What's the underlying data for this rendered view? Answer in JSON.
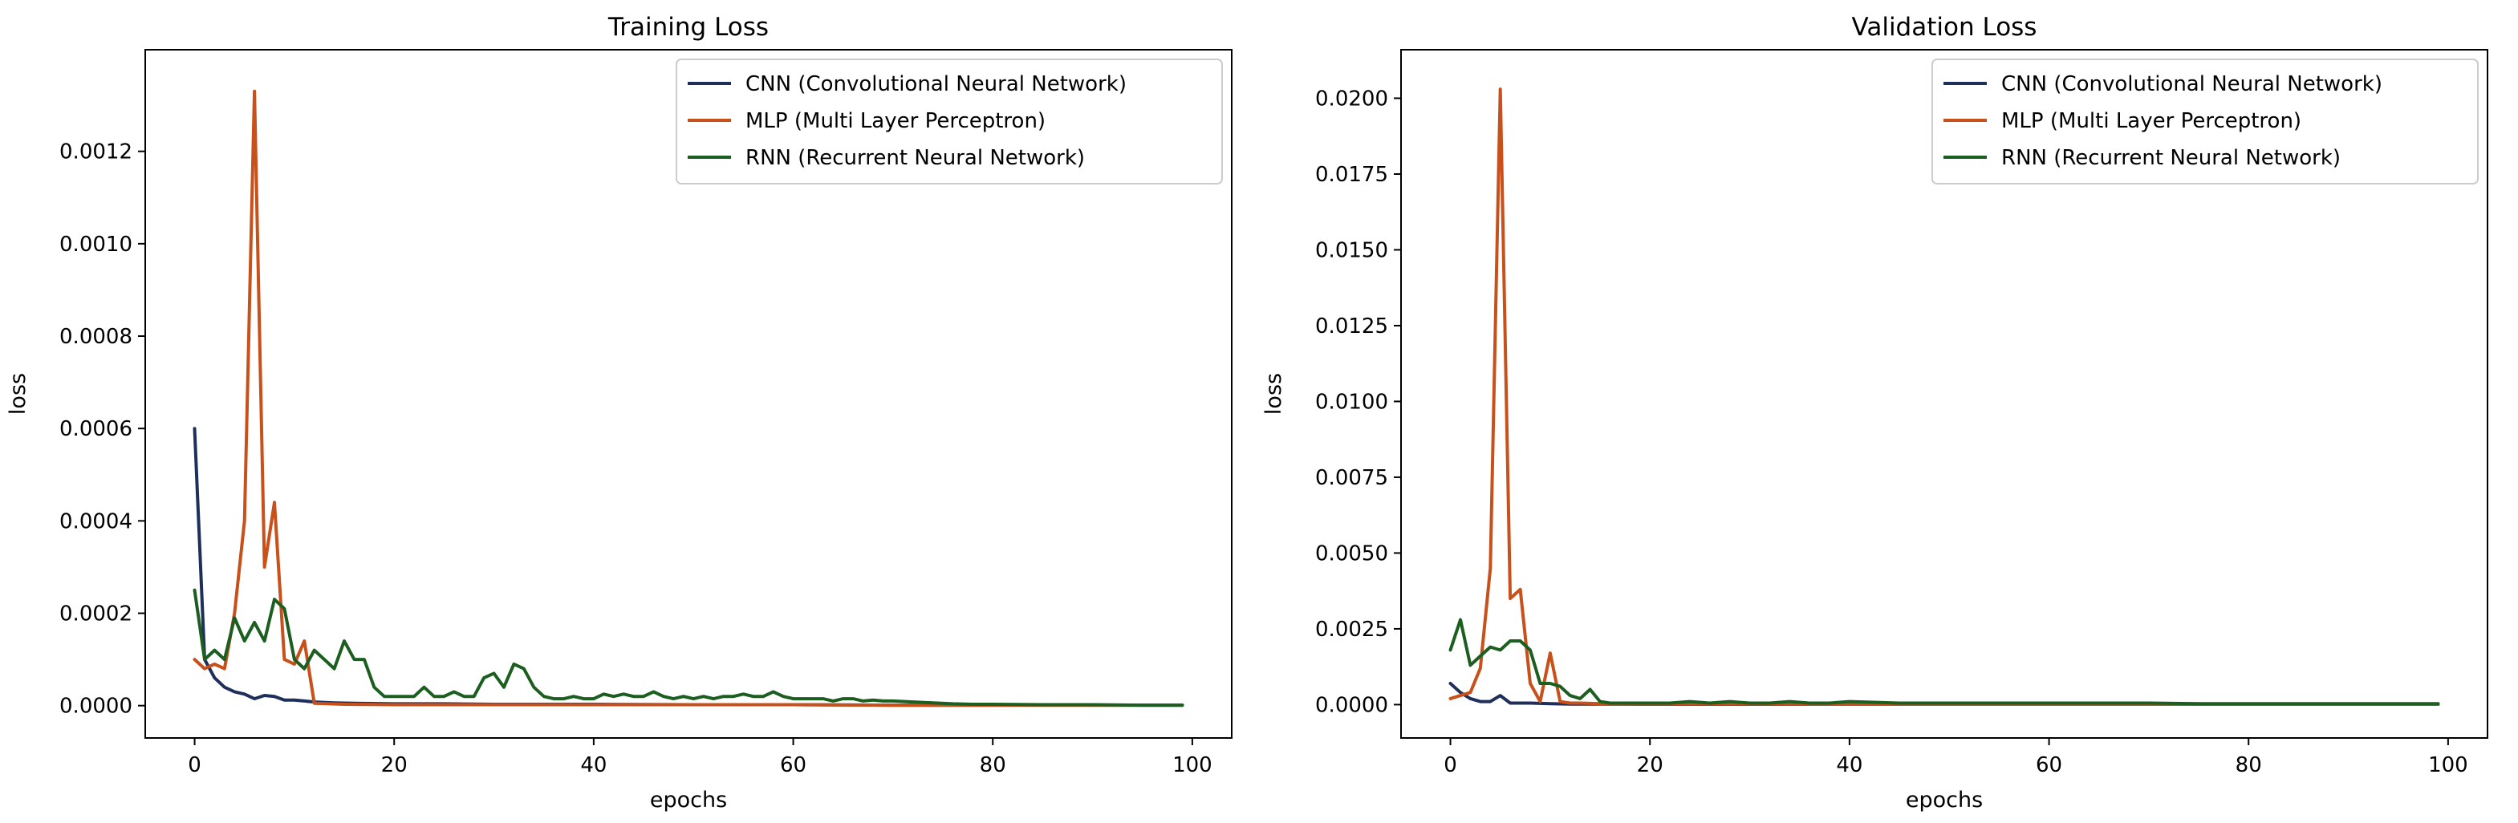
{
  "chart_data": [
    {
      "type": "line",
      "title": "Training Loss",
      "xlabel": "epochs",
      "ylabel": "loss",
      "xlim": [
        -4.95,
        103.95
      ],
      "ylim": [
        -7e-05,
        0.00142
      ],
      "xticks": [
        0,
        20,
        40,
        60,
        80,
        100
      ],
      "xtick_labels": [
        "0",
        "20",
        "40",
        "60",
        "80",
        "100"
      ],
      "yticks": [
        0,
        0.0002,
        0.0004,
        0.0006,
        0.0008,
        0.001,
        0.0012
      ],
      "ytick_labels": [
        "0.0000",
        "0.0002",
        "0.0004",
        "0.0006",
        "0.0008",
        "0.0010",
        "0.0012"
      ],
      "grid": false,
      "legend_position": "top-right",
      "series": [
        {
          "name": "CNN (Convolutional Neural Network)",
          "color": "#1f2f5c",
          "x": [
            0,
            1,
            2,
            3,
            4,
            5,
            6,
            7,
            8,
            9,
            10,
            11,
            12,
            14,
            16,
            20,
            25,
            30,
            40,
            50,
            60,
            70,
            80,
            90,
            99
          ],
          "y": [
            0.0006,
            0.0001,
            6e-05,
            4e-05,
            3e-05,
            2.5e-05,
            1.5e-05,
            2.2e-05,
            2e-05,
            1.2e-05,
            1.2e-05,
            1e-05,
            8e-06,
            6e-06,
            5e-06,
            4e-06,
            4e-06,
            3e-06,
            3e-06,
            2e-06,
            2e-06,
            1e-06,
            1e-06,
            1e-06,
            1e-06
          ]
        },
        {
          "name": "MLP (Multi Layer Perceptron)",
          "color": "#c8501a",
          "x": [
            0,
            1,
            2,
            3,
            4,
            5,
            6,
            7,
            8,
            9,
            10,
            11,
            12,
            15,
            20,
            30,
            40,
            50,
            60,
            70,
            80,
            90,
            99
          ],
          "y": [
            0.0001,
            8e-05,
            9e-05,
            8e-05,
            0.0002,
            0.0004,
            0.00133,
            0.0003,
            0.00044,
            0.0001,
            9e-05,
            0.00014,
            5e-06,
            3e-06,
            2e-06,
            2e-06,
            2e-06,
            2e-06,
            2e-06,
            1e-06,
            1e-06,
            1e-06,
            1e-06
          ]
        },
        {
          "name": "RNN (Recurrent Neural Network)",
          "color": "#1b5e20",
          "x": [
            0,
            1,
            2,
            3,
            4,
            5,
            6,
            7,
            8,
            9,
            10,
            11,
            12,
            13,
            14,
            15,
            16,
            17,
            18,
            19,
            20,
            21,
            22,
            23,
            24,
            25,
            26,
            27,
            28,
            29,
            30,
            31,
            32,
            33,
            34,
            35,
            36,
            37,
            38,
            39,
            40,
            41,
            42,
            43,
            44,
            45,
            46,
            47,
            48,
            49,
            50,
            51,
            52,
            53,
            54,
            55,
            56,
            57,
            58,
            59,
            60,
            61,
            62,
            63,
            64,
            65,
            66,
            67,
            68,
            69,
            70,
            72,
            74,
            76,
            78,
            80,
            85,
            90,
            95,
            99
          ],
          "y": [
            0.00025,
            0.0001,
            0.00012,
            0.0001,
            0.00019,
            0.00014,
            0.00018,
            0.00014,
            0.00023,
            0.00021,
            0.0001,
            8e-05,
            0.00012,
            0.0001,
            8e-05,
            0.00014,
            0.0001,
            0.0001,
            4e-05,
            2e-05,
            2e-05,
            2e-05,
            2e-05,
            4e-05,
            2e-05,
            2e-05,
            3e-05,
            2e-05,
            2e-05,
            6e-05,
            7e-05,
            4e-05,
            9e-05,
            8e-05,
            4e-05,
            2e-05,
            1.5e-05,
            1.5e-05,
            2e-05,
            1.5e-05,
            1.5e-05,
            2.5e-05,
            2e-05,
            2.5e-05,
            2e-05,
            2e-05,
            3e-05,
            2e-05,
            1.5e-05,
            2e-05,
            1.5e-05,
            2e-05,
            1.5e-05,
            2e-05,
            2e-05,
            2.5e-05,
            2e-05,
            2e-05,
            3e-05,
            2e-05,
            1.5e-05,
            1.5e-05,
            1.5e-05,
            1.5e-05,
            1e-05,
            1.5e-05,
            1.5e-05,
            1e-05,
            1.2e-05,
            1e-05,
            1e-05,
            8e-06,
            6e-06,
            4e-06,
            3e-06,
            3e-06,
            2e-06,
            2e-06,
            1e-06,
            1e-06
          ]
        }
      ]
    },
    {
      "type": "line",
      "title": "Validation Loss",
      "xlabel": "epochs",
      "ylabel": "loss",
      "xlim": [
        -4.95,
        103.95
      ],
      "ylim": [
        -0.0011,
        0.0216
      ],
      "xticks": [
        0,
        20,
        40,
        60,
        80,
        100
      ],
      "xtick_labels": [
        "0",
        "20",
        "40",
        "60",
        "80",
        "100"
      ],
      "yticks": [
        0,
        0.0025,
        0.005,
        0.0075,
        0.01,
        0.0125,
        0.015,
        0.0175,
        0.02
      ],
      "ytick_labels": [
        "0.0000",
        "0.0025",
        "0.0050",
        "0.0075",
        "0.0100",
        "0.0125",
        "0.0150",
        "0.0175",
        "0.0200"
      ],
      "grid": false,
      "legend_position": "top-right",
      "series": [
        {
          "name": "CNN (Convolutional Neural Network)",
          "color": "#1f2f5c",
          "x": [
            0,
            1,
            2,
            3,
            4,
            5,
            6,
            7,
            8,
            10,
            12,
            15,
            20,
            30,
            40,
            50,
            60,
            70,
            80,
            90,
            99
          ],
          "y": [
            0.0007,
            0.0004,
            0.0002,
            0.0001,
            0.0001,
            0.0003,
            5e-05,
            5e-05,
            5e-05,
            3e-05,
            2e-05,
            2e-05,
            1e-05,
            1e-05,
            1e-05,
            1e-05,
            1e-05,
            1e-05,
            1e-05,
            1e-05,
            1e-05
          ]
        },
        {
          "name": "MLP (Multi Layer Perceptron)",
          "color": "#c8501a",
          "x": [
            0,
            1,
            2,
            3,
            4,
            5,
            6,
            7,
            8,
            9,
            10,
            11,
            12,
            13,
            15,
            20,
            30,
            40,
            50,
            60,
            70,
            80,
            90,
            99
          ],
          "y": [
            0.0002,
            0.0003,
            0.0004,
            0.0012,
            0.0045,
            0.0203,
            0.0035,
            0.0038,
            0.0007,
            0.0001,
            0.0017,
            0.0001,
            5e-05,
            5e-05,
            3e-05,
            2e-05,
            2e-05,
            1e-05,
            1e-05,
            1e-05,
            1e-05,
            1e-05,
            1e-05,
            1e-05
          ]
        },
        {
          "name": "RNN (Recurrent Neural Network)",
          "color": "#1b5e20",
          "x": [
            0,
            1,
            2,
            3,
            4,
            5,
            6,
            7,
            8,
            9,
            10,
            11,
            12,
            13,
            14,
            15,
            16,
            18,
            20,
            22,
            24,
            26,
            28,
            30,
            32,
            34,
            36,
            38,
            40,
            45,
            50,
            55,
            60,
            65,
            70,
            75,
            80,
            85,
            90,
            95,
            99
          ],
          "y": [
            0.0018,
            0.0028,
            0.0013,
            0.0016,
            0.0019,
            0.0018,
            0.0021,
            0.0021,
            0.0018,
            0.0007,
            0.0007,
            0.0006,
            0.0003,
            0.0002,
            0.0005,
            0.0001,
            5e-05,
            5e-05,
            5e-05,
            5e-05,
            0.0001,
            5e-05,
            0.0001,
            5e-05,
            5e-05,
            0.0001,
            5e-05,
            5e-05,
            0.0001,
            5e-05,
            5e-05,
            5e-05,
            5e-05,
            5e-05,
            5e-05,
            3e-05,
            3e-05,
            3e-05,
            3e-05,
            3e-05,
            3e-05
          ]
        }
      ]
    }
  ]
}
